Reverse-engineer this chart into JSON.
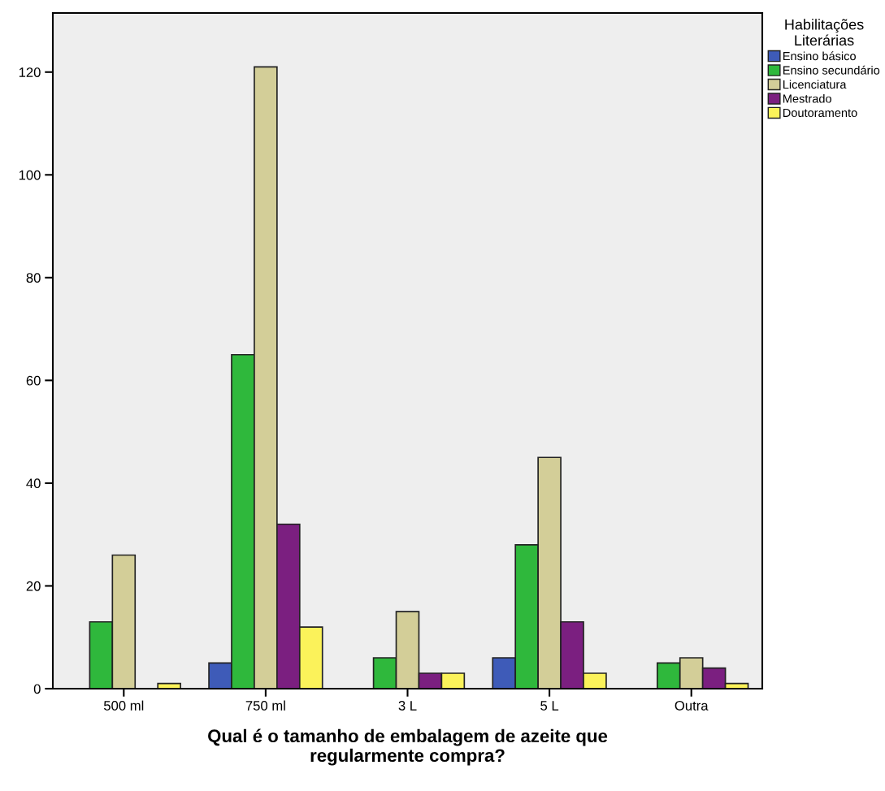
{
  "chart_data": {
    "type": "bar",
    "xlabel": "Qual é o tamanho de embalagem de azeite que\nregularmente compra?",
    "legend_title": "Habilitações\nLiterárias",
    "categories": [
      "500 ml",
      "750 ml",
      "3 L",
      "5 L",
      "Outra"
    ],
    "series": [
      {
        "name": "Ensino básico",
        "color": "#3e5bb8",
        "values": [
          null,
          5,
          null,
          6,
          null
        ]
      },
      {
        "name": "Ensino secundário",
        "color": "#2fb83c",
        "values": [
          13,
          65,
          6,
          28,
          5
        ]
      },
      {
        "name": "Licenciatura",
        "color": "#d3ce98",
        "values": [
          26,
          121,
          15,
          45,
          6
        ]
      },
      {
        "name": "Mestrado",
        "color": "#7b1f80",
        "values": [
          null,
          32,
          3,
          13,
          4
        ]
      },
      {
        "name": "Doutoramento",
        "color": "#fbf25a",
        "values": [
          1,
          12,
          3,
          3,
          1
        ]
      }
    ],
    "ylim": [
      0,
      131.5
    ],
    "yticks": [
      0,
      20,
      40,
      60,
      80,
      100,
      120
    ],
    "grid": false,
    "legend": "top right"
  }
}
